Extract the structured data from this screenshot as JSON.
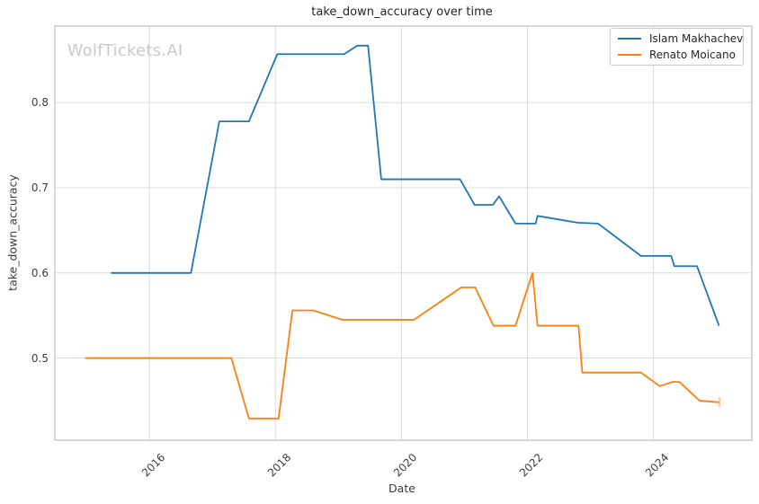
{
  "watermark": "WolfTickets.AI",
  "colors": {
    "background": "#ffffff",
    "grid": "#dcdcdc",
    "spine": "#b0b0b0",
    "title_text": "#262626",
    "tick_text": "#3d3d3d",
    "watermark_text": "#c9c9c9",
    "legend_border": "#cccccc",
    "series_blue": "#1f77b4",
    "series_orange": "#ff7f0e"
  },
  "chart_data": {
    "type": "line",
    "title": "take_down_accuracy over time",
    "xlabel": "Date",
    "ylabel": "take_down_accuracy",
    "grid": true,
    "legend_position": "upper right",
    "xlim": [
      2014.5,
      2025.56
    ],
    "ylim": [
      0.4035,
      0.89
    ],
    "x_ticks": [
      2016,
      2018,
      2020,
      2022,
      2024
    ],
    "y_ticks": [
      0.5,
      0.6,
      0.7,
      0.8
    ],
    "series": [
      {
        "name": "Islam Makhachev",
        "color": "#1f77b4",
        "end_cap": false,
        "x": [
          2015.39,
          2016.66,
          2017.11,
          2017.58,
          2018.03,
          2019.09,
          2019.3,
          2019.47,
          2019.68,
          2020.93,
          2021.16,
          2021.45,
          2021.55,
          2021.81,
          2022.13,
          2022.16,
          2022.8,
          2023.12,
          2023.8,
          2024.28,
          2024.33,
          2024.69,
          2025.04
        ],
        "y": [
          0.6,
          0.6,
          0.778,
          0.778,
          0.857,
          0.857,
          0.867,
          0.867,
          0.71,
          0.71,
          0.68,
          0.68,
          0.69,
          0.658,
          0.658,
          0.667,
          0.659,
          0.658,
          0.62,
          0.62,
          0.608,
          0.608,
          0.538
        ]
      },
      {
        "name": "Renato Moicano",
        "color": "#ff7f0e",
        "end_cap": true,
        "x": [
          2014.98,
          2017.3,
          2017.58,
          2018.05,
          2018.27,
          2018.6,
          2019.06,
          2020.2,
          2020.95,
          2021.17,
          2021.46,
          2021.81,
          2022.08,
          2022.16,
          2022.81,
          2022.87,
          2023.8,
          2024.1,
          2024.3,
          2024.41,
          2024.73,
          2025.04
        ],
        "y": [
          0.5,
          0.5,
          0.429,
          0.429,
          0.556,
          0.556,
          0.545,
          0.545,
          0.583,
          0.583,
          0.538,
          0.538,
          0.6,
          0.538,
          0.538,
          0.483,
          0.483,
          0.467,
          0.472,
          0.472,
          0.45,
          0.448
        ]
      }
    ]
  }
}
